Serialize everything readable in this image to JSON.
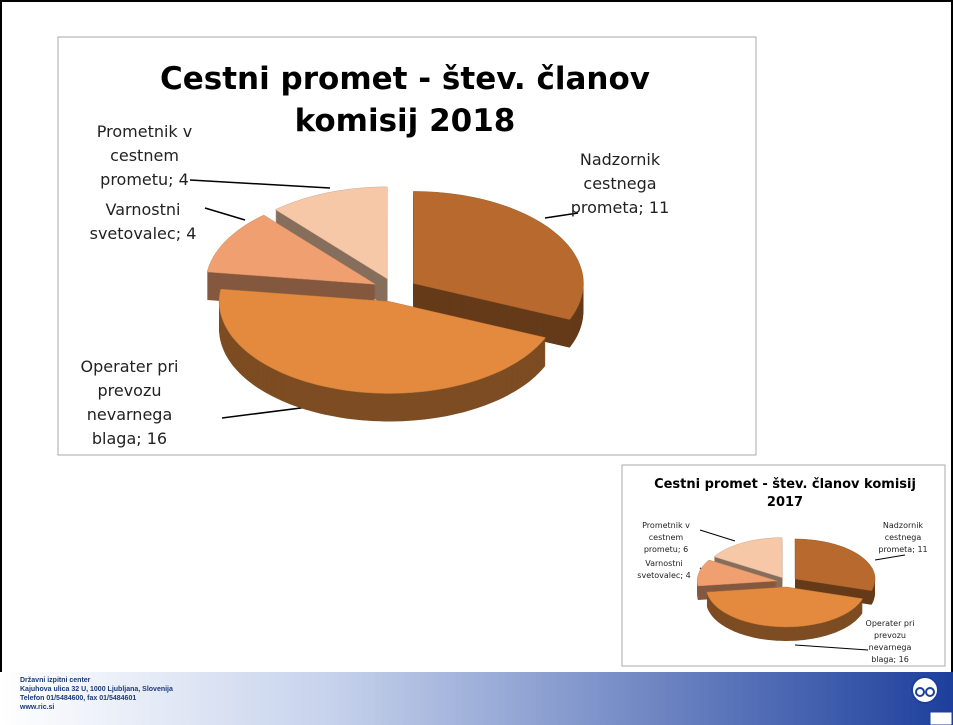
{
  "chart_data": [
    {
      "type": "pie",
      "title": "Cestni promet - štev. članov komisij 2018",
      "categories": [
        "Nadzornik cestnega prometa",
        "Operater pri prevozu nevarnega blaga",
        "Varnostni svetovalec",
        "Prometnik v cestnem prometu"
      ],
      "values": [
        11,
        16,
        4,
        4
      ],
      "colors": [
        "#b86a2e",
        "#e38a3e",
        "#f0a070",
        "#f6c8a8"
      ],
      "label_separator": "; "
    },
    {
      "type": "pie",
      "title": "Cestni promet - štev. članov komisij 2017",
      "categories": [
        "Nadzornik cestnega prometa",
        "Operater pri prevozu nevarnega blaga",
        "Varnostni svetovalec",
        "Prometnik v cestnem prometu"
      ],
      "values": [
        11,
        16,
        4,
        6
      ],
      "colors": [
        "#b86a2e",
        "#e38a3e",
        "#f0a070",
        "#f6c8a8"
      ],
      "label_separator": "; "
    }
  ],
  "footer": {
    "lines": [
      "Državni izpitni center",
      "Kajuhova ulica 32 U, 1000 Ljubljana, Slovenija",
      "Telefon 01/5484600, fax 01/5484601",
      "www.ric.si"
    ]
  }
}
